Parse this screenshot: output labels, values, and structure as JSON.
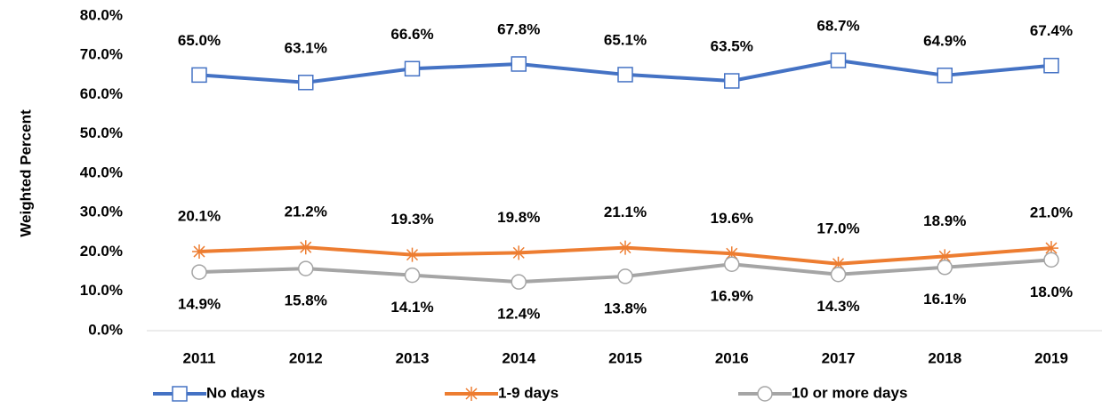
{
  "chart_data": {
    "type": "line",
    "y_label": "Weighted Percent",
    "categories": [
      "2011",
      "2012",
      "2013",
      "2014",
      "2015",
      "2016",
      "2017",
      "2018",
      "2019"
    ],
    "series": [
      {
        "name": "No days",
        "color": "#4472c4",
        "marker": "square",
        "values": [
          65.0,
          63.1,
          66.6,
          67.8,
          65.1,
          63.5,
          68.7,
          64.9,
          67.4
        ],
        "value_labels": [
          "65.0%",
          "63.1%",
          "66.6%",
          "67.8%",
          "65.1%",
          "63.5%",
          "68.7%",
          "64.9%",
          "67.4%"
        ]
      },
      {
        "name": "1-9 days",
        "color": "#ed7d31",
        "marker": "star",
        "values": [
          20.1,
          21.2,
          19.3,
          19.8,
          21.1,
          19.6,
          17.0,
          18.9,
          21.0
        ],
        "value_labels": [
          "20.1%",
          "21.2%",
          "19.3%",
          "19.8%",
          "21.1%",
          "19.6%",
          "17.0%",
          "18.9%",
          "21.0%"
        ]
      },
      {
        "name": "10 or more days",
        "color": "#a5a5a5",
        "marker": "circle",
        "values": [
          14.9,
          15.8,
          14.1,
          12.4,
          13.8,
          16.9,
          14.3,
          16.1,
          18.0
        ],
        "value_labels": [
          "14.9%",
          "15.8%",
          "14.1%",
          "12.4%",
          "13.8%",
          "16.9%",
          "14.3%",
          "16.1%",
          "18.0%"
        ]
      }
    ],
    "ylim": [
      0,
      80
    ],
    "yticks": [
      {
        "value": 0,
        "label": "0.0%"
      },
      {
        "value": 10,
        "label": "10.0%"
      },
      {
        "value": 20,
        "label": "20.0%"
      },
      {
        "value": 30,
        "label": "30.0%"
      },
      {
        "value": 40,
        "label": "40.0%"
      },
      {
        "value": 50,
        "label": "50.0%"
      },
      {
        "value": 60,
        "label": "60.0%"
      },
      {
        "value": 70,
        "label": "70.0%"
      },
      {
        "value": 80,
        "label": "80.0%"
      }
    ],
    "grid": false,
    "legend": "bottom"
  }
}
